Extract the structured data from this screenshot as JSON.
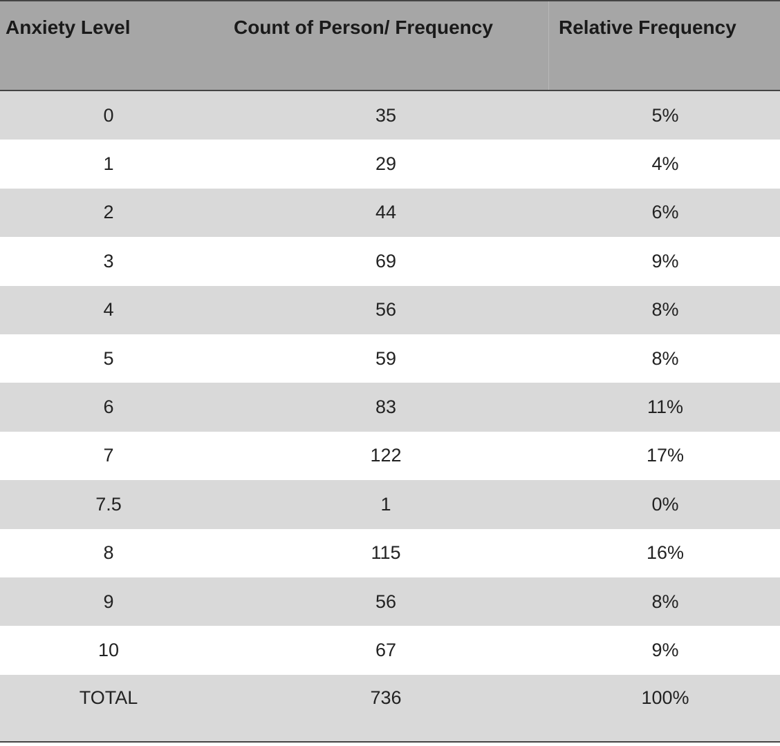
{
  "table": {
    "headers": [
      "Anxiety Level",
      "Count of Person/ Frequency",
      "Relative Frequency"
    ],
    "rows": [
      [
        "0",
        "35",
        "5%"
      ],
      [
        "1",
        "29",
        "4%"
      ],
      [
        "2",
        "44",
        "6%"
      ],
      [
        "3",
        "69",
        "9%"
      ],
      [
        "4",
        "56",
        "8%"
      ],
      [
        "5",
        "59",
        "8%"
      ],
      [
        "6",
        "83",
        "11%"
      ],
      [
        "7",
        "122",
        "17%"
      ],
      [
        "7.5",
        "1",
        "0%"
      ],
      [
        "8",
        "115",
        "16%"
      ],
      [
        "9",
        "56",
        "8%"
      ],
      [
        "10",
        "67",
        "9%"
      ]
    ],
    "total": [
      "TOTAL",
      "736",
      "100%"
    ]
  },
  "colors": {
    "header_bg": "#a6a6a6",
    "shaded_row_bg": "#d9d9d9",
    "plain_row_bg": "#ffffff",
    "border": "#444444"
  }
}
